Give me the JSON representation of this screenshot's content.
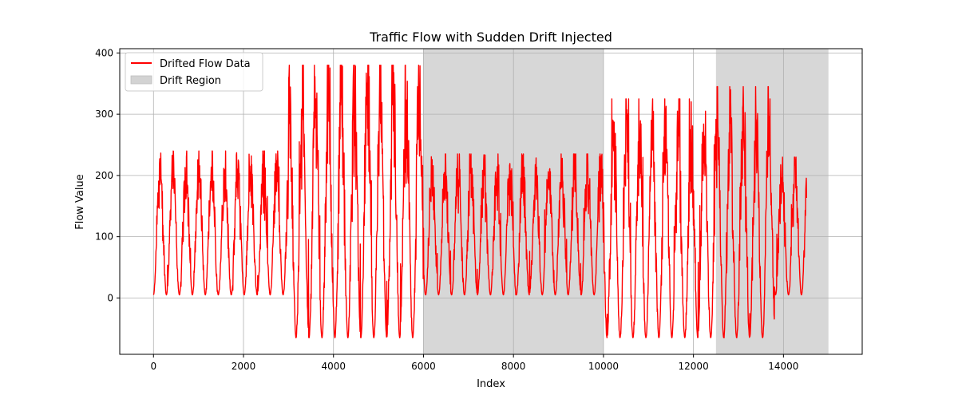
{
  "chart_data": {
    "type": "line",
    "title": "Traffic Flow with Sudden Drift Injected",
    "xlabel": "Index",
    "ylabel": "Flow Value",
    "xlim": [
      -750,
      15750
    ],
    "ylim": [
      -92,
      407
    ],
    "xticks": [
      0,
      2000,
      4000,
      6000,
      8000,
      10000,
      12000,
      14000
    ],
    "yticks": [
      0,
      100,
      200,
      300,
      400
    ],
    "grid": true,
    "legend_position": "upper-left",
    "colors": {
      "series": "#ff0000",
      "drift_region": "#d3d3d3",
      "grid": "#b0b0b0"
    },
    "series": [
      {
        "name": "Drifted Flow Data",
        "period": 288,
        "segments": [
          {
            "x_start": 0,
            "x_end": 3000,
            "min": 5,
            "max": 240
          },
          {
            "x_start": 3000,
            "x_end": 6000,
            "min": -65,
            "max": 380
          },
          {
            "x_start": 6000,
            "x_end": 10000,
            "min": 5,
            "max": 235
          },
          {
            "x_start": 10000,
            "x_end": 12500,
            "min": -65,
            "max": 325
          },
          {
            "x_start": 12500,
            "x_end": 13800,
            "min": -65,
            "max": 345
          },
          {
            "x_start": 13800,
            "x_end": 14520,
            "min": 5,
            "max": 230
          }
        ]
      }
    ],
    "regions": [
      {
        "name": "Drift Region",
        "x_start": 6000,
        "x_end": 10000
      },
      {
        "name": "Drift Region",
        "x_start": 12500,
        "x_end": 15000
      }
    ],
    "legend": [
      {
        "label": "Drifted Flow Data",
        "kind": "line"
      },
      {
        "label": "Drift Region",
        "kind": "patch"
      }
    ]
  }
}
